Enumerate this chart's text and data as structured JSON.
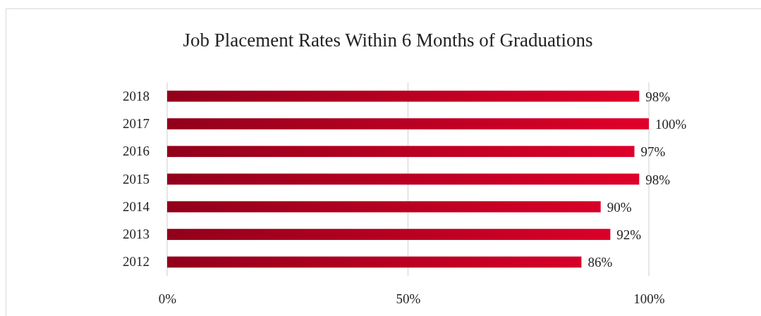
{
  "chart_data": {
    "type": "bar",
    "orientation": "horizontal",
    "title": "Job Placement Rates Within 6 Months of Graduations",
    "categories": [
      "2018",
      "2017",
      "2016",
      "2015",
      "2014",
      "2013",
      "2012"
    ],
    "values": [
      98,
      100,
      97,
      98,
      90,
      92,
      86
    ],
    "value_labels": [
      "98%",
      "100%",
      "97%",
      "98%",
      "90%",
      "92%",
      "86%"
    ],
    "color": "#e0002a",
    "xlim": [
      0,
      100
    ],
    "xticks": [
      {
        "value": 0,
        "label": "0%"
      },
      {
        "value": 50,
        "label": "50%"
      },
      {
        "value": 100,
        "label": "100%"
      }
    ],
    "grid": "x"
  }
}
